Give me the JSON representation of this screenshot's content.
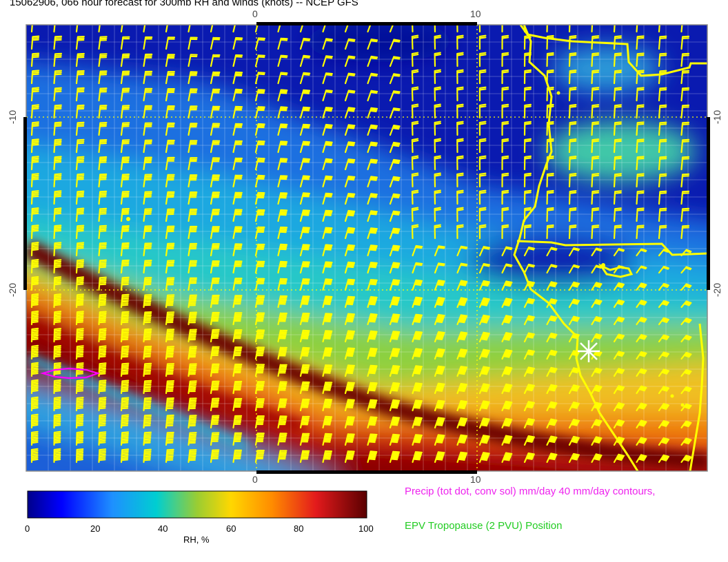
{
  "title": "15062906, 066 hour forecast for 300mb RH and winds (knots) -- NCEP GFS",
  "axes": {
    "top_ticks": [
      "0",
      "10"
    ],
    "bottom_ticks": [
      "0",
      "10"
    ],
    "left_ticks": [
      "-10",
      "-20"
    ],
    "right_ticks": [
      "-10",
      "-20"
    ]
  },
  "colorbar": {
    "label": "RH, %",
    "ticks": [
      "0",
      "20",
      "40",
      "60",
      "80",
      "100"
    ],
    "colors": [
      "#00008b",
      "#0000ff",
      "#1e90ff",
      "#00ced1",
      "#9acd32",
      "#ffd700",
      "#ff8c00",
      "#e31a1c",
      "#8b0000",
      "#5a0000"
    ]
  },
  "legend_notes": {
    "precip": "Precip (tot dot, conv sol) mm/day 40 mm/day contours,",
    "tropopause": "EPV Tropopause (2 PVU) Position"
  },
  "overlay_colors": {
    "barbs": "#ffff00",
    "coast": "#ffff00",
    "precip_contour": "#ff00ff",
    "grid": "#ffff00"
  }
}
